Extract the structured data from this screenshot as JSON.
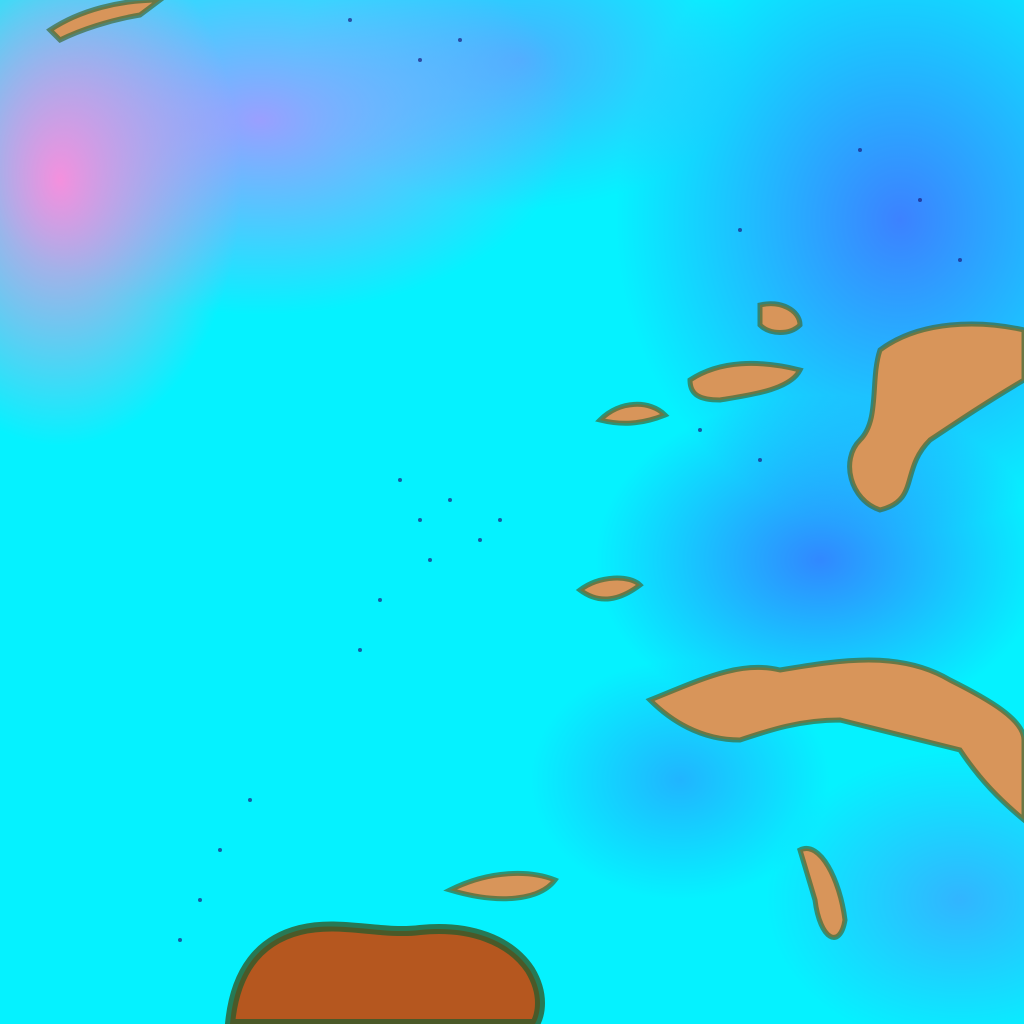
{
  "image": {
    "description_kind": "false-color satellite imagery",
    "colors": {
      "cloud_cyan": "#05f2ff",
      "high_cloud_blue": "#466eff",
      "pink_haze": "#ff8cdc",
      "land_orange": "#d8955a",
      "land_dark": "#b5571f",
      "speckle_navy": "#1a1f80"
    }
  }
}
